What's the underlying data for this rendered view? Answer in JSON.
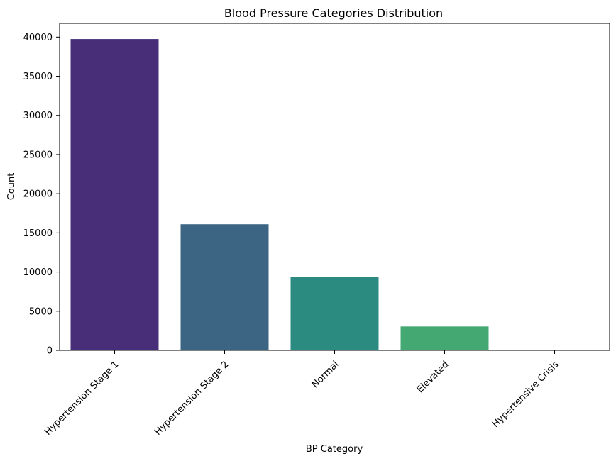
{
  "chart_data": {
    "type": "bar",
    "title": "Blood Pressure Categories Distribution",
    "xlabel": "BP Category",
    "ylabel": "Count",
    "categories": [
      "Hypertension Stage 1",
      "Hypertension Stage 2",
      "Normal",
      "Elevated",
      "Hypertensive Crisis"
    ],
    "values": [
      39750,
      16100,
      9400,
      3050,
      20
    ],
    "colors": [
      "#482e78",
      "#3b6583",
      "#2b8b80",
      "#44a873",
      "#95d840"
    ],
    "ylim": [
      0,
      41750
    ],
    "yticks": [
      0,
      5000,
      10000,
      15000,
      20000,
      25000,
      30000,
      35000,
      40000
    ],
    "ytick_labels": [
      "0",
      "5000",
      "10000",
      "15000",
      "20000",
      "25000",
      "30000",
      "35000",
      "40000"
    ],
    "xtick_rotation_deg": 45,
    "grid": false
  }
}
